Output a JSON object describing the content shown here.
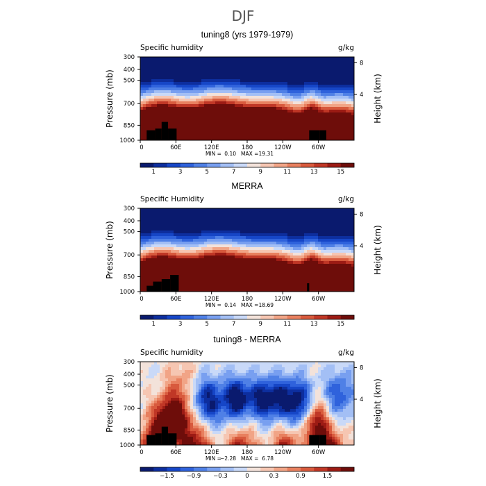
{
  "figure_title": "DJF",
  "chart_data": [
    {
      "type": "heatmap",
      "title": "tuning8 (yrs 1979-1979)",
      "variable_label": "Specific humidity",
      "units": "g/kg",
      "ylabel": "Pressure (mb)",
      "ylabel_right": "Height (km)",
      "y_ticks": [
        "300",
        "400",
        "500",
        "700",
        "850",
        "1000"
      ],
      "y_ticks_right": [
        "8",
        "4"
      ],
      "x_ticks": [
        "0",
        "60E",
        "120E",
        "180",
        "120W",
        "60W"
      ],
      "min_text": "MIN =",
      "min_value": "0.10",
      "max_text": "MAX =",
      "max_value": "19.31",
      "colorbar_labels": [
        "1",
        "3",
        "5",
        "7",
        "9",
        "11",
        "13",
        "15"
      ],
      "colormap": "blue-white-red",
      "field": "humidity"
    },
    {
      "type": "heatmap",
      "title": "MERRA",
      "variable_label": "Specific Humidity",
      "units": "g/kg",
      "ylabel": "Pressure (mb)",
      "ylabel_right": "Height (km)",
      "y_ticks": [
        "300",
        "400",
        "500",
        "700",
        "850",
        "1000"
      ],
      "y_ticks_right": [
        "8",
        "4"
      ],
      "x_ticks": [
        "0",
        "60E",
        "120E",
        "180",
        "120W",
        "60W"
      ],
      "min_text": "MIN =",
      "min_value": "0.14",
      "max_text": "MAX =",
      "max_value": "18.69",
      "colorbar_labels": [
        "1",
        "3",
        "5",
        "7",
        "9",
        "11",
        "13",
        "15"
      ],
      "colormap": "blue-white-red",
      "field": "humidity"
    },
    {
      "type": "heatmap",
      "title": "tuning8 - MERRA",
      "variable_label": "Specific humidity",
      "units": "g/kg",
      "ylabel": "Pressure (mb)",
      "ylabel_right": "Height (km)",
      "y_ticks": [
        "300",
        "400",
        "500",
        "700",
        "850",
        "1000"
      ],
      "y_ticks_right": [
        "8",
        "4"
      ],
      "x_ticks": [
        "0",
        "60E",
        "120E",
        "180",
        "120W",
        "60W"
      ],
      "min_text": "MIN =",
      "min_value": "−2.28",
      "max_text": "MAX =",
      "max_value": "6.78",
      "colorbar_labels": [
        "−1.5",
        "−0.9",
        "−0.3",
        "0",
        "0.3",
        "0.9",
        "1.5"
      ],
      "colormap": "blue-white-red",
      "field": "difference"
    }
  ]
}
